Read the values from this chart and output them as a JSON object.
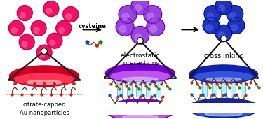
{
  "bg_color": "#ffffff",
  "panel1_label": "citrate-capped\nAu nanoparticles",
  "panel2_label": "electrostatic\ninteractions",
  "panel3_label": "crosslinking",
  "arrow1_label": "cysteine",
  "np_red_fill": "#EE1166",
  "np_red_edge": "#CC0044",
  "np_red_light": "#FF6699",
  "np_purple_fill": "#9944DD",
  "np_purple_edge": "#6600AA",
  "np_purple_light": "#CC88FF",
  "np_blue_fill": "#2233BB",
  "np_blue_edge": "#001199",
  "np_blue_light": "#5566EE",
  "ell_red_dark": "#CC0022",
  "ell_red_light": "#FF3355",
  "ell_red_white": "#FF9999",
  "ell_purple_dark": "#7700CC",
  "ell_purple_light": "#BB55EE",
  "ell_blue_dark": "#1122AA",
  "ell_blue_light": "#3355DD",
  "triangle_color": "#111111",
  "citrate_dark": "#CC2200",
  "cysteine_green": "#228800",
  "cysteine_blue": "#1144CC",
  "cysteine_red": "#CC2200"
}
